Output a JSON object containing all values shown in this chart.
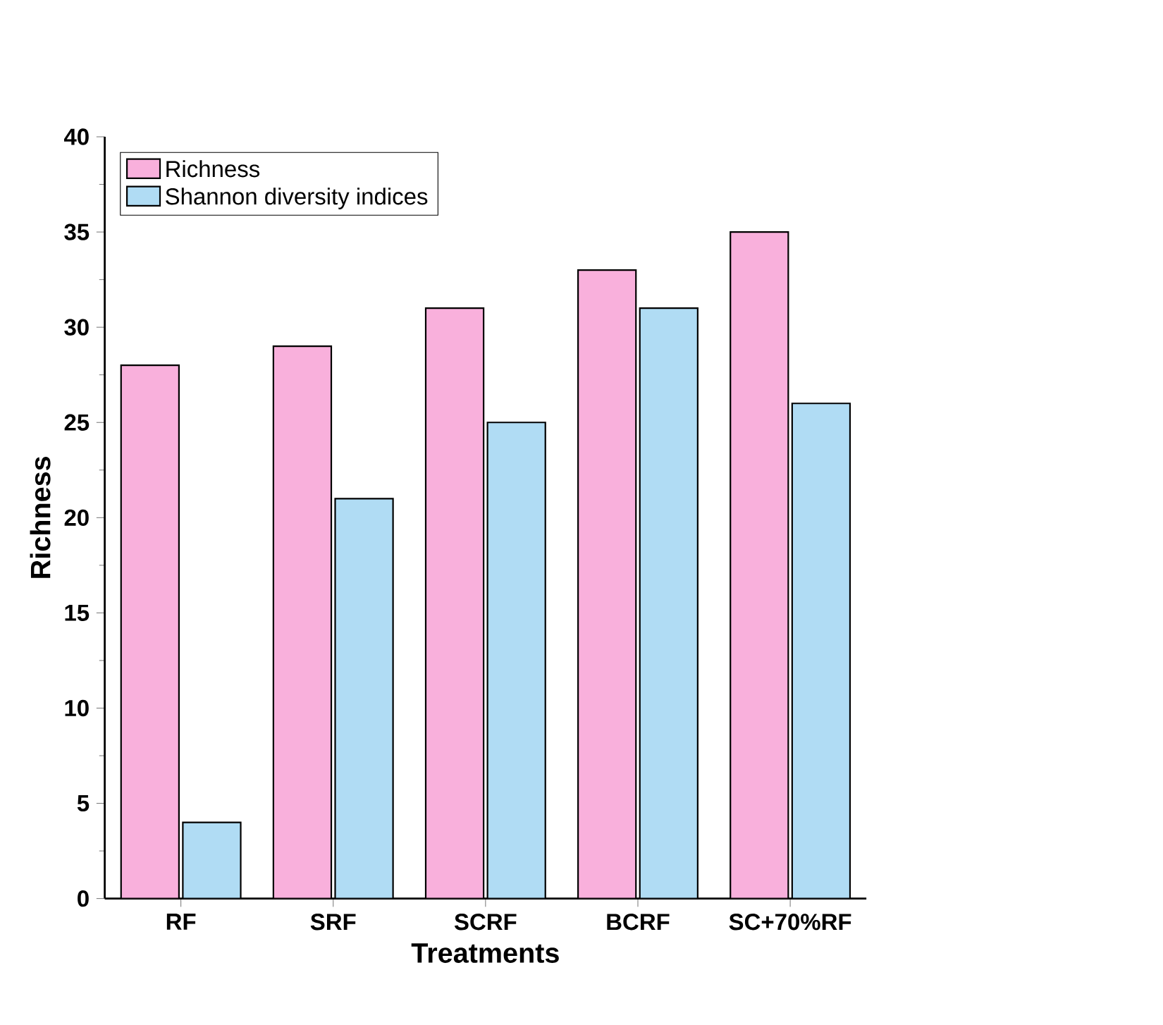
{
  "chart_data": {
    "type": "bar",
    "xlabel": "Treatments",
    "ylabel": "Richness",
    "categories": [
      "RF",
      "SRF",
      "SCRF",
      "BCRF",
      "SC+70%RF"
    ],
    "series": [
      {
        "name": "Richness",
        "color": "#f9b0dc",
        "values": [
          28,
          29,
          31,
          33,
          35
        ]
      },
      {
        "name": "Shannon diversity indices",
        "color": "#b0dcf4",
        "values": [
          4,
          21,
          25,
          31,
          26
        ]
      }
    ],
    "ylim": [
      0,
      40
    ],
    "yticks": [
      0,
      5,
      10,
      15,
      20,
      25,
      30,
      35,
      40
    ],
    "legend": "top left"
  }
}
